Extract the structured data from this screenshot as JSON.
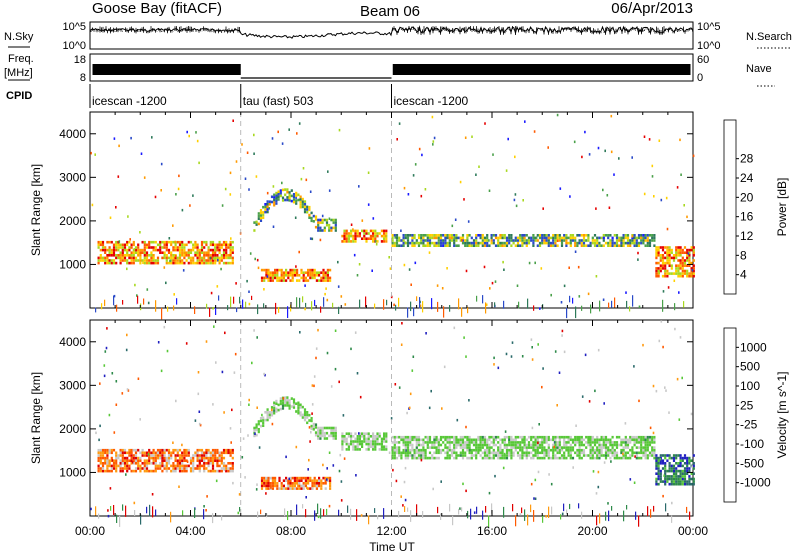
{
  "header": {
    "title_left": "Goose Bay (fitACF)",
    "title_center": "Beam 06",
    "title_right": "06/Apr/2013"
  },
  "top_panels": {
    "nsky_label": "N.Sky",
    "nsky_ticks": [
      "10^5",
      "10^0"
    ],
    "nsearch_label": "N.Search",
    "nsearch_ticks": [
      "10^5",
      "10^0"
    ],
    "freq_label": "Freq.",
    "freq_unit": "[MHz]",
    "freq_ticks": [
      "18",
      "8"
    ],
    "nave_label": "Nave",
    "nave_ticks": [
      "60",
      "0"
    ],
    "cpid_label": "CPID",
    "cpid_segments": [
      {
        "label": "icescan -1200",
        "start_hour": 0,
        "end_hour": 6
      },
      {
        "label": "tau (fast) 503",
        "start_hour": 6,
        "end_hour": 12
      },
      {
        "label": "icescan -1200",
        "start_hour": 12,
        "end_hour": 24
      }
    ]
  },
  "chart_data": [
    {
      "type": "heatmap",
      "title": "",
      "xlabel": "Time UT",
      "ylabel": "Slant Range [km]",
      "x_ticks": [
        "00:00",
        "04:00",
        "08:00",
        "12:00",
        "16:00",
        "20:00",
        "00:00"
      ],
      "xlim_hours": [
        0,
        24
      ],
      "y_ticks": [
        1000,
        2000,
        3000,
        4000
      ],
      "ylim_km": [
        0,
        4500
      ],
      "colorbar_label": "Power [dB]",
      "colorbar_ticks": [
        4,
        8,
        12,
        16,
        20,
        24,
        28
      ],
      "colorbar_colors": [
        "#1a1aff",
        "#2a4ac8",
        "#2e7a5a",
        "#4aa04a",
        "#a8d820",
        "#ffd000",
        "#ff9a00",
        "#ff5a00",
        "#e60000"
      ],
      "echo_regions": [
        {
          "t_start": 0.3,
          "t_end": 5.7,
          "r_min": 1000,
          "r_max": 1500,
          "value": "high"
        },
        {
          "t_start": 6.5,
          "t_end": 9.8,
          "r_min": 1900,
          "r_max": 2700,
          "value": "medium"
        },
        {
          "t_start": 6.8,
          "t_end": 9.6,
          "r_min": 600,
          "r_max": 900,
          "value": "high"
        },
        {
          "t_start": 10.0,
          "t_end": 11.8,
          "r_min": 1500,
          "r_max": 1800,
          "value": "high"
        },
        {
          "t_start": 12.0,
          "t_end": 22.5,
          "r_min": 1400,
          "r_max": 1700,
          "value": "medium"
        },
        {
          "t_start": 22.5,
          "t_end": 24.0,
          "r_min": 700,
          "r_max": 1400,
          "value": "high"
        }
      ]
    },
    {
      "type": "heatmap",
      "title": "",
      "xlabel": "Time UT",
      "ylabel": "Slant Range [km]",
      "x_ticks": [
        "00:00",
        "04:00",
        "08:00",
        "12:00",
        "16:00",
        "20:00",
        "00:00"
      ],
      "xlim_hours": [
        0,
        24
      ],
      "y_ticks": [
        1000,
        2000,
        3000,
        4000
      ],
      "ylim_km": [
        0,
        4500
      ],
      "colorbar_label": "Velocity [m s^-1]",
      "colorbar_ticks": [
        1000,
        500,
        100,
        25,
        -25,
        -100,
        -500,
        -1000
      ],
      "colorbar_colors": [
        "#2020c0",
        "#2a6a6a",
        "#2e8a4a",
        "#58c838",
        "#c8c8c8",
        "#c8c8c8",
        "#ff9a10",
        "#ff5a00",
        "#e00000"
      ],
      "echo_regions": [
        {
          "t_start": 0.3,
          "t_end": 5.7,
          "r_min": 1000,
          "r_max": 1500,
          "value": "negative"
        },
        {
          "t_start": 6.5,
          "t_end": 9.8,
          "r_min": 1900,
          "r_max": 2800,
          "value": "near-zero"
        },
        {
          "t_start": 6.8,
          "t_end": 9.6,
          "r_min": 600,
          "r_max": 900,
          "value": "negative"
        },
        {
          "t_start": 10.0,
          "t_end": 11.8,
          "r_min": 1500,
          "r_max": 1900,
          "value": "near-zero"
        },
        {
          "t_start": 12.0,
          "t_end": 22.5,
          "r_min": 1300,
          "r_max": 1800,
          "value": "near-zero"
        },
        {
          "t_start": 22.5,
          "t_end": 24.0,
          "r_min": 700,
          "r_max": 1400,
          "value": "positive"
        }
      ]
    }
  ]
}
